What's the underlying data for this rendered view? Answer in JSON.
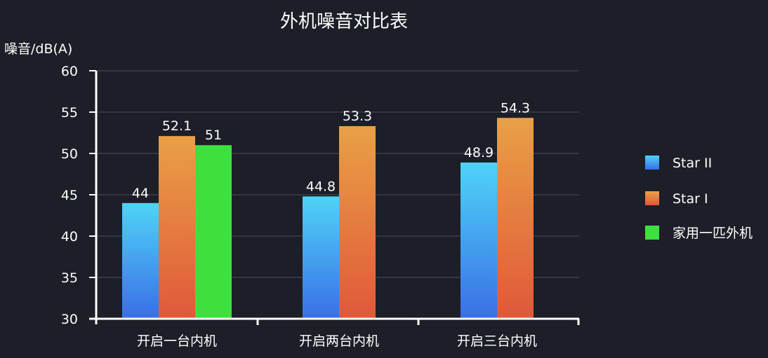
{
  "chart_data": {
    "type": "bar",
    "title": "外机噪音对比表",
    "ylabel": "噪音/dB(A)",
    "xlabel": "",
    "ylim": [
      30,
      60
    ],
    "yticks": [
      30,
      35,
      40,
      45,
      50,
      55,
      60
    ],
    "categories": [
      "开启一台内机",
      "开启两台内机",
      "开启三台内机"
    ],
    "series": [
      {
        "name": "Star II",
        "values": [
          44,
          44.8,
          48.9
        ],
        "color_top": "#4fd3f7",
        "color_bottom": "#3a6fe6"
      },
      {
        "name": "Star I",
        "values": [
          52.1,
          53.3,
          54.3
        ],
        "color_top": "#e9a046",
        "color_bottom": "#e0583a"
      },
      {
        "name": "家用一匹外机",
        "values": [
          51,
          null,
          null
        ],
        "color_top": "#3ee040",
        "color_bottom": "#3ee040"
      }
    ],
    "value_labels": [
      [
        "44",
        "44.8",
        "48.9"
      ],
      [
        "52.1",
        "53.3",
        "54.3"
      ],
      [
        "51",
        "",
        ""
      ]
    ],
    "grid": true,
    "legend_position": "right"
  }
}
